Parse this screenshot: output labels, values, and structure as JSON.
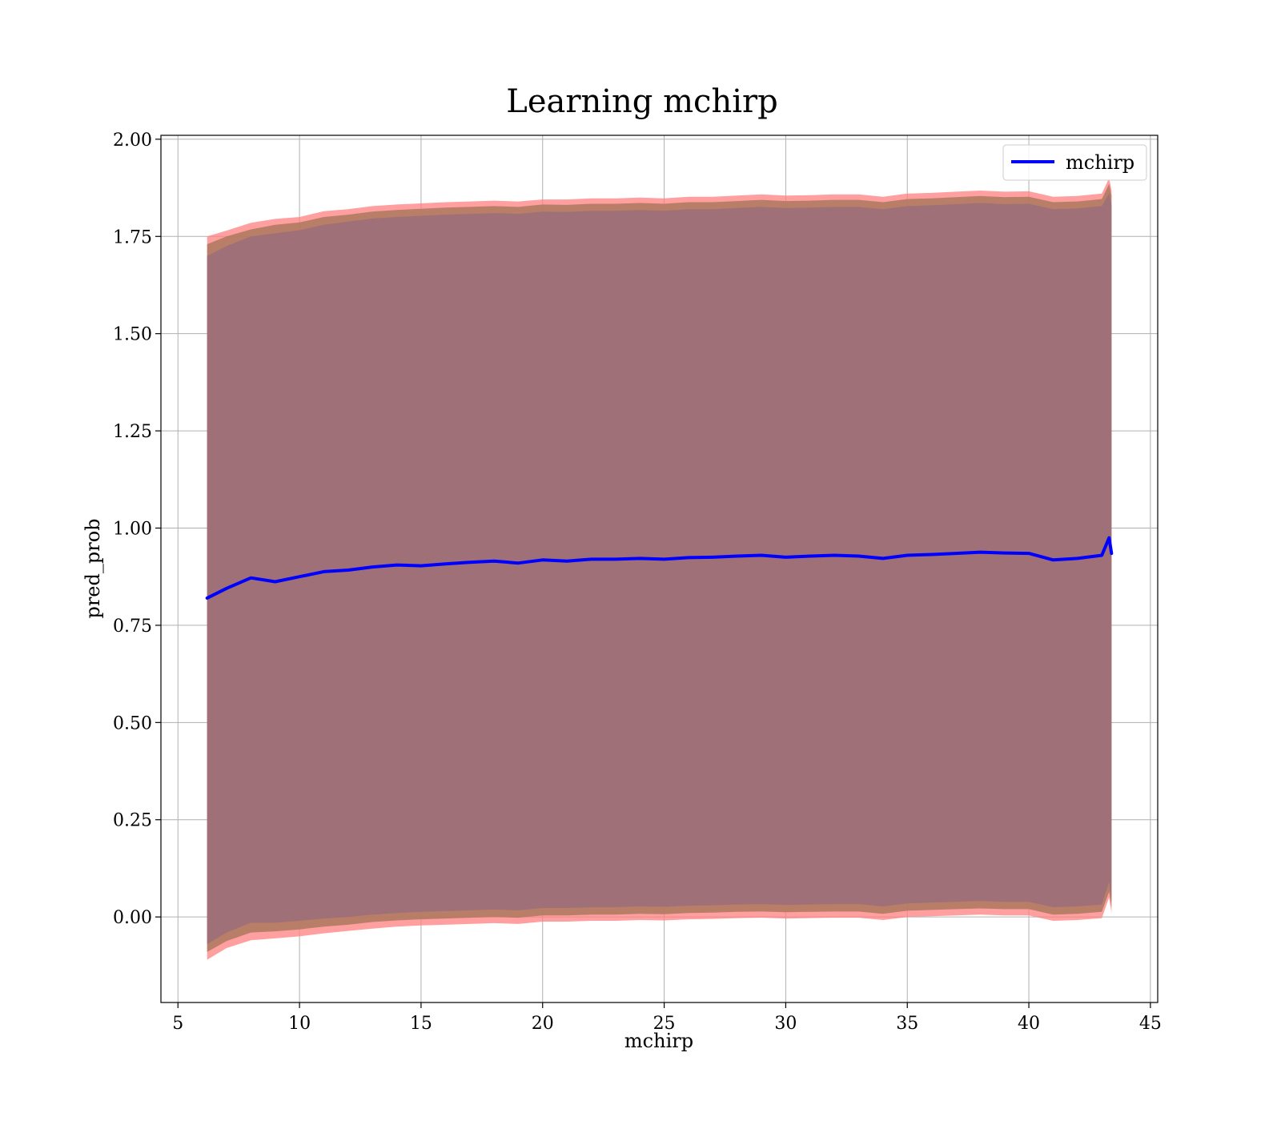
{
  "chart_data": {
    "type": "line",
    "title": "Learning mchirp",
    "xlabel": "mchirp",
    "ylabel": "pred_prob",
    "xlim": [
      4.3,
      45.3
    ],
    "ylim": [
      -0.22,
      2.01
    ],
    "xticks": [
      5,
      10,
      15,
      20,
      25,
      30,
      35,
      40,
      45
    ],
    "yticks": [
      0.0,
      0.25,
      0.5,
      0.75,
      1.0,
      1.25,
      1.5,
      1.75,
      2.0
    ],
    "xtick_labels": [
      "5",
      "10",
      "15",
      "20",
      "25",
      "30",
      "35",
      "40",
      "45"
    ],
    "ytick_labels": [
      "0.00",
      "0.25",
      "0.50",
      "0.75",
      "1.00",
      "1.25",
      "1.50",
      "1.75",
      "2.00"
    ],
    "grid": true,
    "legend_position": "top-right",
    "colors": {
      "line": "#0000ff",
      "outer_band": "#ff7f7f",
      "middle_band": "#b07a60",
      "inner_band": "#a07078",
      "grid": "#b0b0b0"
    },
    "series": [
      {
        "name": "mchirp",
        "x": [
          6.2,
          7.0,
          8.0,
          9.0,
          10.0,
          11.0,
          12.0,
          13.0,
          14.0,
          15.0,
          16.0,
          17.0,
          18.0,
          19.0,
          20.0,
          21.0,
          22.0,
          23.0,
          24.0,
          25.0,
          26.0,
          27.0,
          28.0,
          29.0,
          30.0,
          31.0,
          32.0,
          33.0,
          34.0,
          35.0,
          36.0,
          37.0,
          38.0,
          39.0,
          40.0,
          41.0,
          42.0,
          43.0,
          43.3,
          43.4
        ],
        "y": [
          0.82,
          0.845,
          0.872,
          0.862,
          0.875,
          0.888,
          0.892,
          0.9,
          0.905,
          0.903,
          0.908,
          0.912,
          0.915,
          0.91,
          0.918,
          0.915,
          0.92,
          0.92,
          0.922,
          0.92,
          0.924,
          0.925,
          0.928,
          0.93,
          0.925,
          0.928,
          0.93,
          0.928,
          0.922,
          0.93,
          0.932,
          0.935,
          0.938,
          0.936,
          0.935,
          0.918,
          0.922,
          0.93,
          0.975,
          0.935
        ],
        "band_outer_upper": [
          1.75,
          1.765,
          1.785,
          1.795,
          1.8,
          1.815,
          1.82,
          1.828,
          1.832,
          1.835,
          1.838,
          1.84,
          1.842,
          1.84,
          1.845,
          1.845,
          1.848,
          1.848,
          1.85,
          1.848,
          1.852,
          1.852,
          1.855,
          1.858,
          1.855,
          1.856,
          1.858,
          1.858,
          1.852,
          1.86,
          1.862,
          1.865,
          1.868,
          1.865,
          1.866,
          1.852,
          1.854,
          1.86,
          1.9,
          1.87
        ],
        "band_outer_lower": [
          -0.11,
          -0.08,
          -0.06,
          -0.055,
          -0.05,
          -0.042,
          -0.036,
          -0.03,
          -0.025,
          -0.022,
          -0.02,
          -0.018,
          -0.016,
          -0.018,
          -0.012,
          -0.012,
          -0.01,
          -0.01,
          -0.008,
          -0.009,
          -0.006,
          -0.005,
          -0.003,
          -0.002,
          -0.004,
          -0.003,
          -0.002,
          -0.002,
          -0.008,
          0.0,
          0.002,
          0.004,
          0.006,
          0.004,
          0.004,
          -0.01,
          -0.008,
          -0.003,
          0.05,
          0.01
        ],
        "band_middle_upper": [
          1.73,
          1.75,
          1.768,
          1.78,
          1.786,
          1.8,
          1.806,
          1.814,
          1.818,
          1.821,
          1.824,
          1.826,
          1.828,
          1.826,
          1.832,
          1.831,
          1.834,
          1.834,
          1.836,
          1.834,
          1.838,
          1.838,
          1.841,
          1.844,
          1.841,
          1.842,
          1.844,
          1.844,
          1.838,
          1.846,
          1.848,
          1.851,
          1.854,
          1.851,
          1.852,
          1.838,
          1.84,
          1.846,
          1.885,
          1.855
        ],
        "band_middle_lower": [
          -0.09,
          -0.062,
          -0.04,
          -0.037,
          -0.032,
          -0.025,
          -0.02,
          -0.013,
          -0.009,
          -0.006,
          -0.004,
          -0.002,
          0.0,
          -0.002,
          0.004,
          0.004,
          0.006,
          0.006,
          0.008,
          0.007,
          0.01,
          0.011,
          0.013,
          0.014,
          0.012,
          0.013,
          0.014,
          0.014,
          0.008,
          0.016,
          0.018,
          0.02,
          0.022,
          0.02,
          0.02,
          0.006,
          0.008,
          0.013,
          0.065,
          0.025
        ],
        "band_inner_upper": [
          1.7,
          1.725,
          1.75,
          1.758,
          1.766,
          1.78,
          1.788,
          1.796,
          1.8,
          1.803,
          1.806,
          1.808,
          1.81,
          1.808,
          1.814,
          1.813,
          1.816,
          1.816,
          1.818,
          1.816,
          1.82,
          1.82,
          1.823,
          1.826,
          1.823,
          1.824,
          1.826,
          1.826,
          1.82,
          1.828,
          1.83,
          1.833,
          1.836,
          1.833,
          1.834,
          1.82,
          1.822,
          1.828,
          1.86,
          1.83
        ],
        "band_inner_lower": [
          -0.07,
          -0.04,
          -0.015,
          -0.015,
          -0.01,
          -0.004,
          0.0,
          0.006,
          0.01,
          0.013,
          0.015,
          0.017,
          0.019,
          0.017,
          0.023,
          0.023,
          0.025,
          0.025,
          0.027,
          0.026,
          0.029,
          0.03,
          0.032,
          0.033,
          0.031,
          0.032,
          0.033,
          0.033,
          0.027,
          0.035,
          0.037,
          0.039,
          0.041,
          0.039,
          0.039,
          0.025,
          0.027,
          0.032,
          0.09,
          0.04
        ]
      }
    ]
  }
}
